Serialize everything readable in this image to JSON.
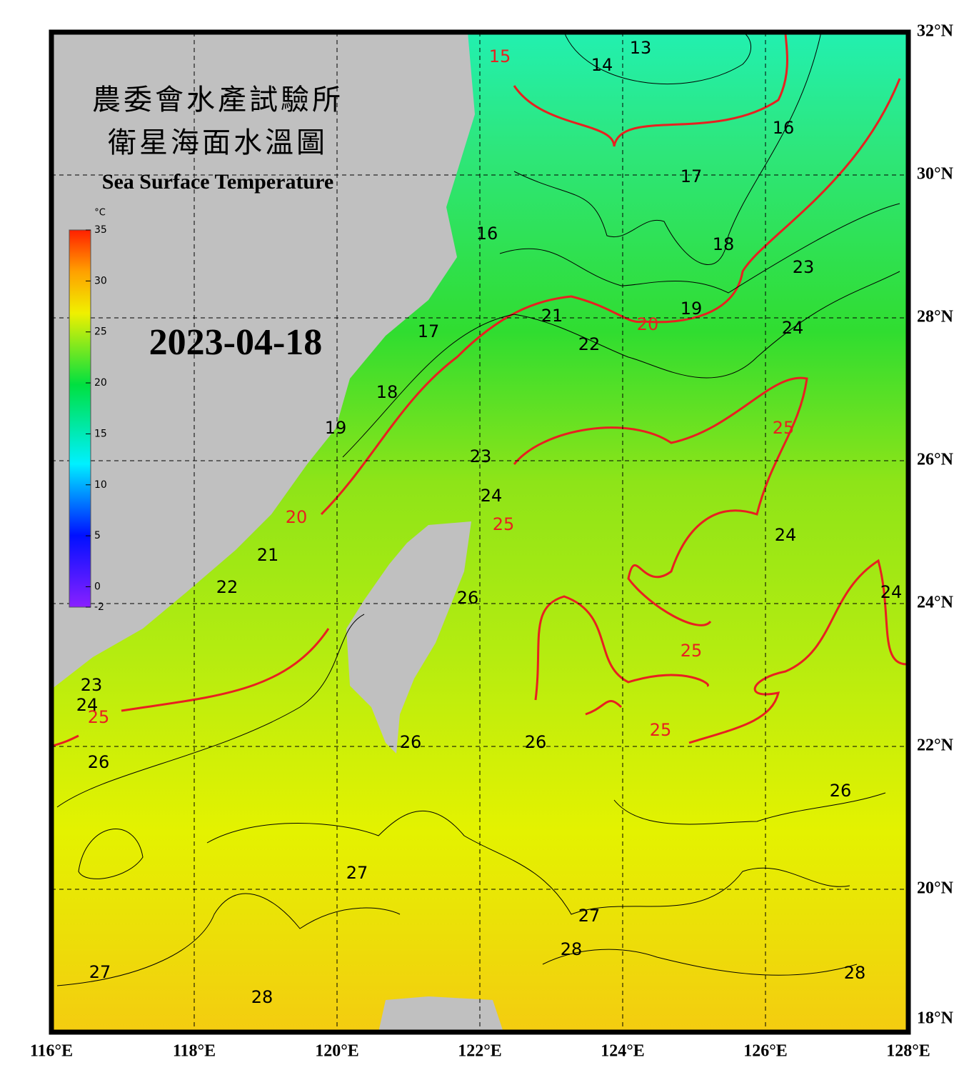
{
  "header": {
    "title_line1": "農委會水產試驗所",
    "title_line2": "衛星海面水溫圖",
    "title_en": "Sea Surface Temperature"
  },
  "date": "2023-04-18",
  "colorbar": {
    "unit": "°C",
    "range": [
      -2,
      35
    ],
    "ticks": [
      -2,
      0,
      5,
      10,
      15,
      20,
      25,
      30,
      35
    ]
  },
  "map": {
    "lonlim": [
      116,
      128
    ],
    "latlim": [
      18,
      32
    ],
    "lon_ticks": [
      {
        "value": 116,
        "label": "116°E"
      },
      {
        "value": 118,
        "label": "118°E"
      },
      {
        "value": 120,
        "label": "120°E"
      },
      {
        "value": 122,
        "label": "122°E"
      },
      {
        "value": 124,
        "label": "124°E"
      },
      {
        "value": 126,
        "label": "126°E"
      },
      {
        "value": 128,
        "label": "128°E"
      }
    ],
    "lat_ticks": [
      {
        "value": 18,
        "label": "18°N"
      },
      {
        "value": 20,
        "label": "20°N"
      },
      {
        "value": 22,
        "label": "22°N"
      },
      {
        "value": 24,
        "label": "24°N"
      },
      {
        "value": 26,
        "label": "26°N"
      },
      {
        "value": 28,
        "label": "28°N"
      },
      {
        "value": 30,
        "label": "30°N"
      },
      {
        "value": 32,
        "label": "32°N"
      }
    ],
    "isotherm_labels": [
      {
        "value": 13,
        "lon": 124.25,
        "lat": 31.77
      },
      {
        "value": 14,
        "lon": 123.71,
        "lat": 31.53
      },
      {
        "value": 15,
        "lon": 122.28,
        "lat": 31.65
      },
      {
        "value": 16,
        "lon": 126.25,
        "lat": 30.65
      },
      {
        "value": 16,
        "lon": 122.1,
        "lat": 29.17
      },
      {
        "value": 17,
        "lon": 124.96,
        "lat": 29.97
      },
      {
        "value": 18,
        "lon": 125.41,
        "lat": 29.02
      },
      {
        "value": 17,
        "lon": 121.28,
        "lat": 27.8
      },
      {
        "value": 19,
        "lon": 124.96,
        "lat": 28.12
      },
      {
        "value": 20,
        "lon": 124.35,
        "lat": 27.9
      },
      {
        "value": 21,
        "lon": 123.01,
        "lat": 28.02
      },
      {
        "value": 22,
        "lon": 123.53,
        "lat": 27.62
      },
      {
        "value": 23,
        "lon": 126.53,
        "lat": 28.7
      },
      {
        "value": 24,
        "lon": 126.38,
        "lat": 27.85
      },
      {
        "value": 18,
        "lon": 120.7,
        "lat": 26.95
      },
      {
        "value": 19,
        "lon": 119.98,
        "lat": 26.45
      },
      {
        "value": 25,
        "lon": 126.25,
        "lat": 26.45
      },
      {
        "value": 23,
        "lon": 122.01,
        "lat": 26.05
      },
      {
        "value": 24,
        "lon": 122.16,
        "lat": 25.5
      },
      {
        "value": 25,
        "lon": 122.33,
        "lat": 25.1
      },
      {
        "value": 20,
        "lon": 119.43,
        "lat": 25.2
      },
      {
        "value": 21,
        "lon": 119.03,
        "lat": 24.67
      },
      {
        "value": 22,
        "lon": 118.46,
        "lat": 24.22
      },
      {
        "value": 24,
        "lon": 126.28,
        "lat": 24.95
      },
      {
        "value": 24,
        "lon": 127.76,
        "lat": 24.15
      },
      {
        "value": 26,
        "lon": 121.83,
        "lat": 24.07
      },
      {
        "value": 25,
        "lon": 124.96,
        "lat": 23.33
      },
      {
        "value": 23,
        "lon": 116.56,
        "lat": 22.85
      },
      {
        "value": 24,
        "lon": 116.5,
        "lat": 22.57
      },
      {
        "value": 25,
        "lon": 116.66,
        "lat": 22.4
      },
      {
        "value": 25,
        "lon": 124.53,
        "lat": 22.22
      },
      {
        "value": 26,
        "lon": 122.78,
        "lat": 22.05
      },
      {
        "value": 26,
        "lon": 121.03,
        "lat": 22.05
      },
      {
        "value": 26,
        "lon": 116.66,
        "lat": 21.77
      },
      {
        "value": 26,
        "lon": 127.05,
        "lat": 21.37
      },
      {
        "value": 27,
        "lon": 120.28,
        "lat": 20.22
      },
      {
        "value": 27,
        "lon": 123.53,
        "lat": 19.62
      },
      {
        "value": 28,
        "lon": 123.28,
        "lat": 19.15
      },
      {
        "value": 28,
        "lon": 127.25,
        "lat": 18.82
      },
      {
        "value": 27,
        "lon": 116.68,
        "lat": 18.83
      },
      {
        "value": 28,
        "lon": 118.95,
        "lat": 18.48
      }
    ]
  }
}
